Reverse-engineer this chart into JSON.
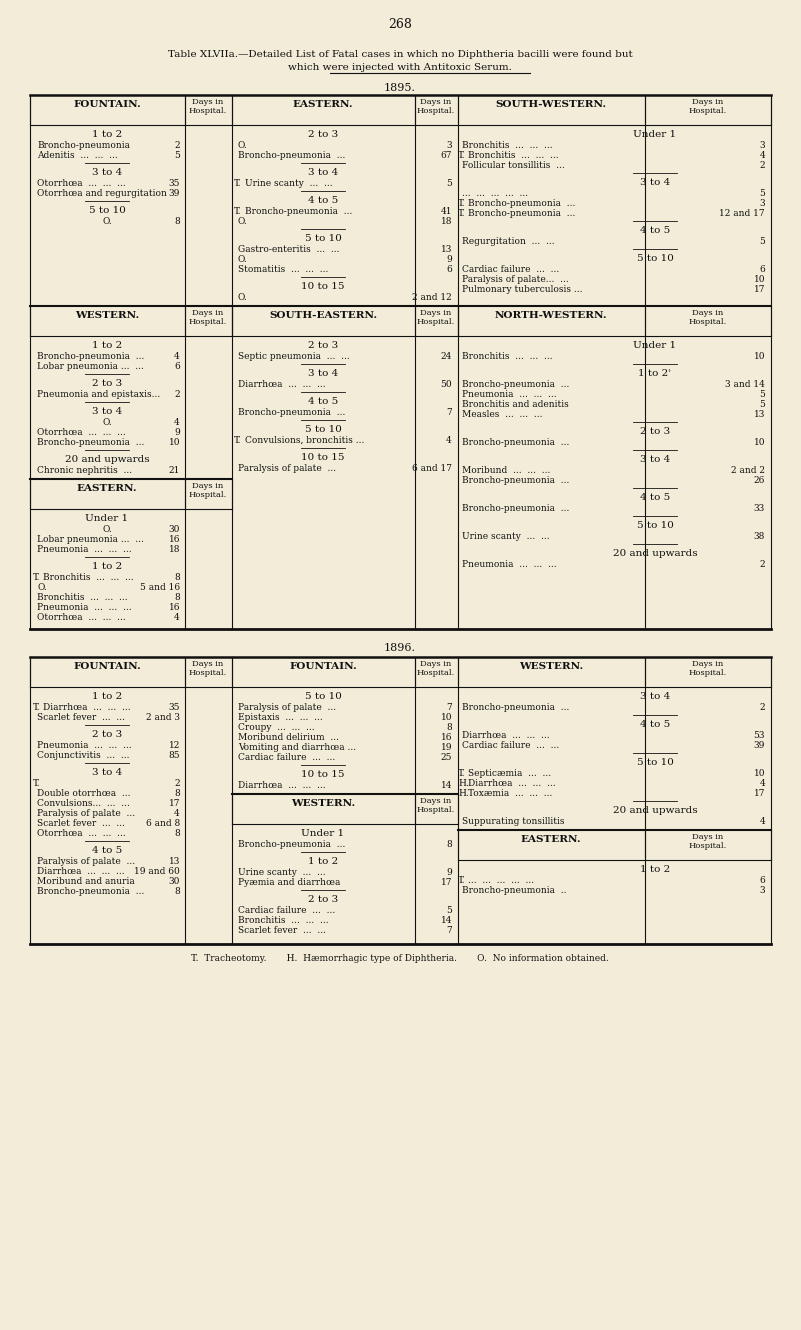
{
  "bg_color": "#f2ecd8",
  "text_color": "#111111",
  "page_num": "268",
  "title1": "Table XLVIIa.—Detailed List of Fatal cases in which no Diphtheria bacilli were found but",
  "title2": "which were injected with Antitoxic Serum.",
  "underline_text": "no Diphtheria bacilli",
  "year1": "1895.",
  "year2": "1896.",
  "footer": "T.  Tracheotomy.       H.  Hæmorrhagic type of Diphtheria.       O.  No information obtained."
}
